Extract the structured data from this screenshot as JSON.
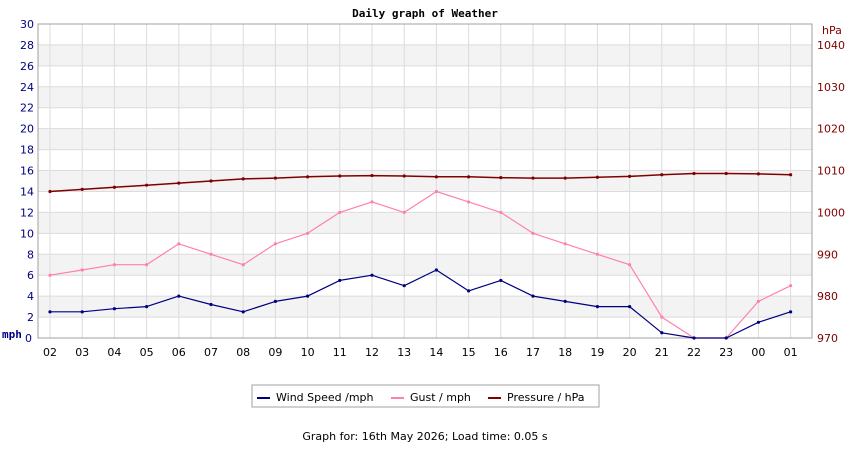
{
  "chart_data": {
    "type": "line",
    "title": "Daily graph of Weather",
    "left_axis": {
      "unit": "mph",
      "ylim": [
        0,
        30
      ],
      "ticks": [
        0,
        2,
        4,
        6,
        8,
        10,
        12,
        14,
        16,
        18,
        20,
        22,
        24,
        26,
        28,
        30
      ]
    },
    "right_axis": {
      "unit": "hPa",
      "ylim": [
        970,
        1045
      ],
      "ticks": [
        970,
        980,
        990,
        1000,
        1010,
        1020,
        1030,
        1040
      ]
    },
    "x_tick_labels": [
      "02",
      "03",
      "04",
      "05",
      "06",
      "07",
      "08",
      "09",
      "10",
      "11",
      "12",
      "13",
      "14",
      "15",
      "16",
      "17",
      "18",
      "19",
      "20",
      "21",
      "22",
      "23",
      "00",
      "01"
    ],
    "grid": true,
    "legend_position": "bottom",
    "series": [
      {
        "name": "Wind Speed /mph",
        "color": "#000080",
        "axis": "left",
        "x": [
          "02",
          "03",
          "04",
          "05",
          "06",
          "07",
          "08",
          "09",
          "10",
          "11",
          "12",
          "13",
          "14",
          "15",
          "16",
          "17",
          "18",
          "19",
          "20",
          "21",
          "22",
          "23",
          "00",
          "01"
        ],
        "values": [
          2.5,
          2.5,
          2.8,
          3.0,
          4.0,
          3.2,
          2.5,
          3.5,
          4.0,
          5.5,
          6.0,
          5.0,
          6.5,
          4.5,
          5.5,
          4.0,
          3.5,
          3.0,
          3.0,
          0.5,
          0.0,
          0.0,
          1.5,
          2.5
        ]
      },
      {
        "name": "Gust / mph",
        "color": "#ff80b0",
        "axis": "left",
        "x": [
          "02",
          "03",
          "04",
          "05",
          "06",
          "07",
          "08",
          "09",
          "10",
          "11",
          "12",
          "13",
          "14",
          "15",
          "16",
          "17",
          "18",
          "19",
          "20",
          "21",
          "22",
          "23",
          "00",
          "01"
        ],
        "values": [
          6.0,
          6.5,
          7.0,
          7.0,
          9.0,
          8.0,
          7.0,
          9.0,
          10.0,
          12.0,
          13.0,
          12.0,
          14.0,
          13.0,
          12.0,
          10.0,
          9.0,
          8.0,
          7.0,
          2.0,
          0.0,
          0.0,
          3.5,
          5.0
        ]
      },
      {
        "name": "Pressure / hPa",
        "color": "#800000",
        "axis": "right",
        "x": [
          "02",
          "03",
          "04",
          "05",
          "06",
          "07",
          "08",
          "09",
          "10",
          "11",
          "12",
          "13",
          "14",
          "15",
          "16",
          "17",
          "18",
          "19",
          "20",
          "21",
          "22",
          "23",
          "00",
          "01"
        ],
        "values": [
          1005.0,
          1005.5,
          1006.0,
          1006.5,
          1007.0,
          1007.5,
          1008.0,
          1008.2,
          1008.5,
          1008.7,
          1008.8,
          1008.7,
          1008.5,
          1008.5,
          1008.3,
          1008.2,
          1008.2,
          1008.4,
          1008.6,
          1009.0,
          1009.3,
          1009.3,
          1009.2,
          1009.0
        ]
      }
    ]
  },
  "footer": {
    "text": "Graph for: 16th May 2026; Load time: 0.05 s"
  }
}
